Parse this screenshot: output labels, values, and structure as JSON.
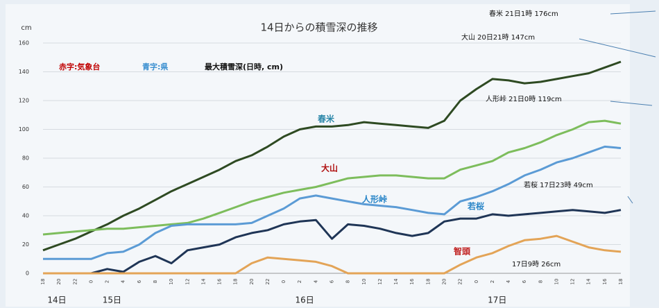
{
  "chart_data": {
    "type": "line",
    "title": "14日からの積雪深の推移",
    "y_label": "cm",
    "legend_notes": [
      {
        "text": "赤字:気象台",
        "color": "#c00000"
      },
      {
        "text": "青字:県",
        "color": "#3a8fd0"
      },
      {
        "text": "最大積雪深(日時, cm)",
        "color": "#111111"
      }
    ],
    "annotations": [
      "春米 21日1時 176cm",
      "大山 20日21時 147cm",
      "人形峠 21日0時 119cm",
      "若桜 17日23時 49cm",
      "17日9時 26cm"
    ],
    "day_labels": [
      "14日",
      "15日",
      "16日",
      "17日"
    ],
    "categories": [
      "18",
      "20",
      "22",
      "0",
      "2",
      "4",
      "6",
      "8",
      "10",
      "12",
      "14",
      "16",
      "18",
      "20",
      "22",
      "0",
      "2",
      "4",
      "6",
      "8",
      "10",
      "12",
      "14",
      "16",
      "18",
      "20",
      "22",
      "0",
      "2",
      "4",
      "6",
      "8",
      "10",
      "12",
      "14",
      "16",
      "18"
    ],
    "ylim": [
      0,
      160
    ],
    "yticks": [
      0,
      20,
      40,
      60,
      80,
      100,
      120,
      140,
      160
    ],
    "grid": true,
    "series": [
      {
        "name": "春米",
        "color": "#2e4a22",
        "label_color": "#2a86a8",
        "values": [
          16,
          20,
          24,
          29,
          34,
          40,
          45,
          51,
          57,
          62,
          67,
          72,
          78,
          82,
          88,
          95,
          100,
          102,
          102,
          103,
          105,
          104,
          103,
          102,
          101,
          106,
          120,
          128,
          135,
          134,
          132,
          133,
          135,
          137,
          139,
          143,
          147
        ]
      },
      {
        "name": "大山",
        "color": "#7dbd5c",
        "label_color": "#b01010",
        "values": [
          27,
          28,
          29,
          30,
          31,
          31,
          32,
          33,
          34,
          35,
          38,
          42,
          46,
          50,
          53,
          56,
          58,
          60,
          63,
          66,
          67,
          68,
          68,
          67,
          66,
          66,
          72,
          75,
          78,
          84,
          87,
          91,
          96,
          100,
          105,
          106,
          104
        ]
      },
      {
        "name": "人形峠",
        "color": "#5b9bd5",
        "label_color": "#2a86c8",
        "values": [
          10,
          10,
          10,
          10,
          14,
          15,
          20,
          28,
          33,
          34,
          34,
          34,
          34,
          35,
          40,
          45,
          52,
          54,
          52,
          50,
          48,
          47,
          46,
          44,
          42,
          41,
          50,
          53,
          57,
          62,
          68,
          72,
          77,
          80,
          84,
          88,
          87
        ]
      },
      {
        "name": "若桜",
        "color": "#1f3556",
        "label_color": "#2a86c8",
        "values": [
          0,
          0,
          0,
          0,
          3,
          1,
          8,
          12,
          7,
          16,
          18,
          20,
          25,
          28,
          30,
          34,
          36,
          37,
          24,
          34,
          33,
          31,
          28,
          26,
          28,
          36,
          38,
          38,
          41,
          40,
          41,
          42,
          43,
          44,
          43,
          42,
          44
        ]
      },
      {
        "name": "智頭",
        "color": "#e3a457",
        "label_color": "#c02020",
        "values": [
          0,
          0,
          0,
          0,
          0,
          0,
          0,
          0,
          0,
          0,
          0,
          0,
          0,
          7,
          11,
          10,
          9,
          8,
          5,
          0,
          0,
          0,
          0,
          0,
          0,
          0,
          6,
          11,
          14,
          19,
          23,
          24,
          26,
          22,
          18,
          16,
          15
        ]
      }
    ]
  }
}
